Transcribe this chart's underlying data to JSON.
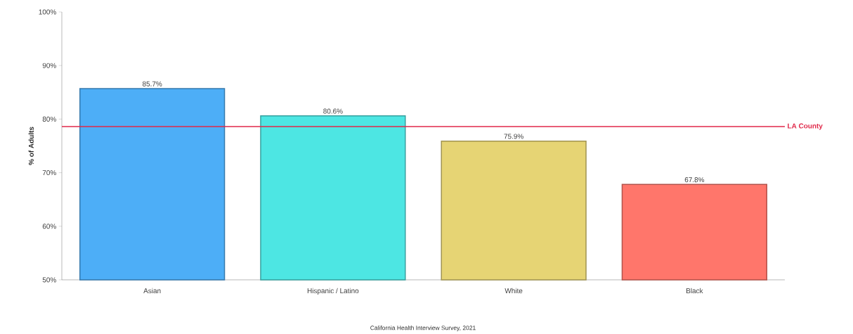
{
  "chart_data": {
    "type": "bar",
    "ylabel": "% of Adults",
    "categories": [
      "Asian",
      "Hispanic / Latino",
      "White",
      "Black"
    ],
    "values": [
      85.7,
      80.6,
      75.9,
      67.8
    ],
    "colors": [
      "#4daef7",
      "#4de6e3",
      "#e6d474",
      "#ff766b"
    ],
    "value_labels": [
      "85.7%",
      "80.6%",
      "75.9%",
      "67.8%"
    ],
    "ylim": [
      50,
      100
    ],
    "yticks": [
      {
        "value": 50,
        "label": "50%"
      },
      {
        "value": 60,
        "label": "60%"
      },
      {
        "value": 70,
        "label": "70%"
      },
      {
        "value": 80,
        "label": "80%"
      },
      {
        "value": 90,
        "label": "90%"
      },
      {
        "value": 100,
        "label": "100%"
      }
    ],
    "ref_lines": [
      {
        "axis": "y",
        "value": 78.6,
        "label": "LA County",
        "color": "#e0294a"
      }
    ],
    "annotations": [
      "California Health Interview Survey, 2021"
    ],
    "grid": false
  }
}
